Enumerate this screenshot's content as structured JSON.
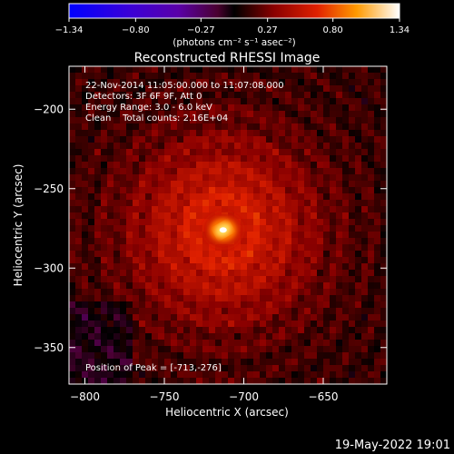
{
  "chart_data": {
    "type": "heatmap",
    "title": "Reconstructed RHESSI Image",
    "xlabel": "Heliocentric X (arcsec)",
    "ylabel": "Heliocentric Y (arcsec)",
    "xlim": [
      -810,
      -610
    ],
    "ylim": [
      -373,
      -173
    ],
    "x_ticks": [
      -800,
      -750,
      -700,
      -650
    ],
    "x_tick_labels": [
      "−800",
      "−750",
      "−700",
      "−650"
    ],
    "y_ticks": [
      -200,
      -250,
      -300,
      -350
    ],
    "y_tick_labels": [
      "−200",
      "−250",
      "−300",
      "−350"
    ],
    "colorbar": {
      "range": [
        -1.34,
        1.34
      ],
      "ticks": [
        -1.34,
        -0.8,
        -0.27,
        0.27,
        0.8,
        1.34
      ],
      "tick_labels": [
        "−1.34",
        "−0.80",
        "−0.27",
        "0.27",
        "0.80",
        "1.34"
      ],
      "units_label": "(photons cm⁻² s⁻¹ asec⁻²)"
    },
    "annotations": [
      "22-Nov-2014 11:05:00.000 to 11:07:08.000",
      "Detectors: 3F 6F 9F, Att 0",
      "Energy Range: 3.0 - 6.0 keV",
      "Clean    Total counts: 2.16E+04"
    ],
    "peak_label": "Position of Peak = [-713,-276]",
    "peak": {
      "x": -713,
      "y": -276,
      "value": 1.34
    },
    "background_level": 0.12,
    "grid": false
  },
  "footer": {
    "timestamp": "19-May-2022 19:01"
  }
}
